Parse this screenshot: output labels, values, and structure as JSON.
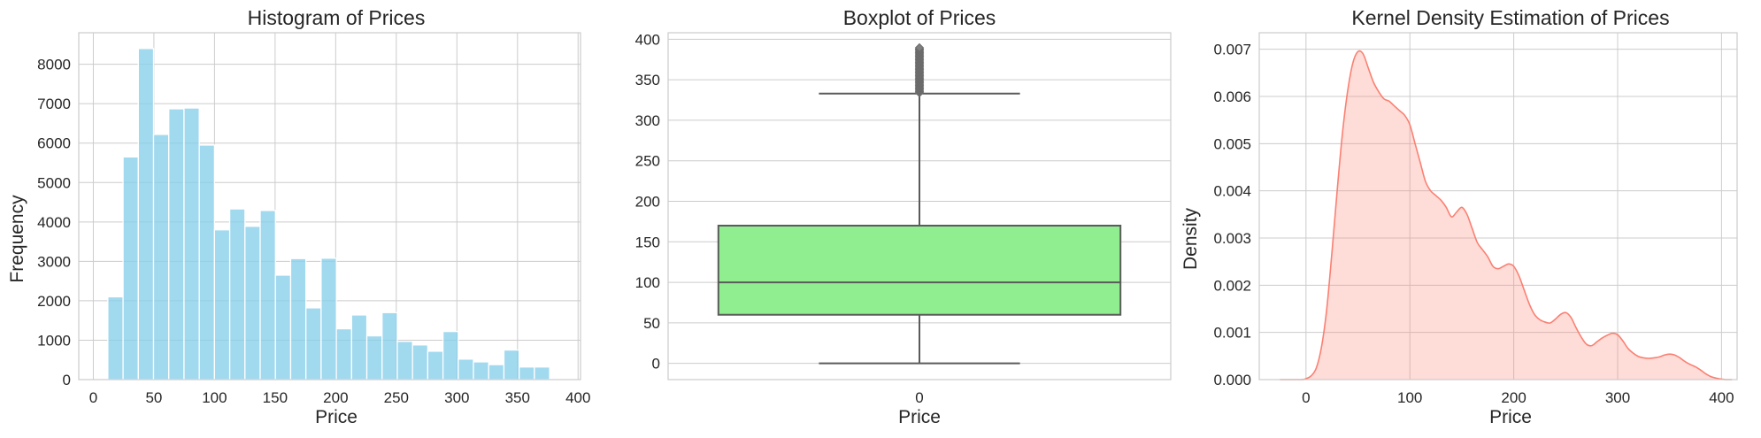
{
  "chart_data": [
    {
      "type": "bar",
      "title": "Histogram of Prices",
      "xlabel": "Price",
      "ylabel": "Frequency",
      "xlim": [
        -12,
        402
      ],
      "ylim": [
        0,
        8800
      ],
      "xticks": [
        0,
        50,
        100,
        150,
        200,
        250,
        300,
        350,
        400
      ],
      "yticks": [
        0,
        1000,
        2000,
        3000,
        4000,
        5000,
        6000,
        7000,
        8000
      ],
      "bin_width": 12.57,
      "bin_starts": [
        12,
        24.57,
        37.14,
        49.71,
        62.28,
        74.85,
        87.42,
        99.99,
        112.56,
        125.13,
        137.7,
        150.27,
        162.84,
        175.41,
        187.98,
        200.55,
        213.12,
        225.69,
        238.26,
        250.83,
        263.4,
        275.97,
        288.54,
        301.11,
        313.68,
        326.25,
        338.82,
        351.39,
        363.96,
        376.53
      ],
      "values": [
        2100,
        5650,
        8400,
        6220,
        6870,
        6890,
        5950,
        3800,
        4330,
        3890,
        4290,
        2650,
        3070,
        1820,
        3080,
        1290,
        1640,
        1110,
        1700,
        970,
        880,
        720,
        1220,
        520,
        450,
        380,
        750,
        320,
        320,
        0
      ],
      "grid": true,
      "color": "#87ceeb"
    },
    {
      "type": "box",
      "title": "Boxplot of Prices",
      "xlabel": "Price",
      "ylabel": "",
      "categories": [
        "0"
      ],
      "ylim": [
        -20,
        408
      ],
      "yticks": [
        0,
        50,
        100,
        150,
        200,
        250,
        300,
        350,
        400
      ],
      "whisker_low": 0,
      "q1": 60,
      "median": 100,
      "q3": 170,
      "whisker_high": 333,
      "outliers_range": [
        334,
        390
      ],
      "grid": true,
      "color": "#90ee90"
    },
    {
      "type": "area",
      "title": "Kernel Density Estimation of Prices",
      "xlabel": "Price",
      "ylabel": "Density",
      "xlim": [
        -45,
        415
      ],
      "ylim": [
        0,
        0.00735
      ],
      "xticks": [
        0,
        100,
        200,
        300,
        400
      ],
      "yticks": [
        0,
        0.001,
        0.002,
        0.003,
        0.004,
        0.005,
        0.006,
        0.007
      ],
      "ytick_labels": [
        "0.000",
        "0.001",
        "0.002",
        "0.003",
        "0.004",
        "0.005",
        "0.006",
        "0.007"
      ],
      "x": [
        -25,
        -5,
        0,
        5,
        10,
        15,
        20,
        25,
        30,
        35,
        40,
        45,
        50,
        55,
        60,
        65,
        70,
        75,
        80,
        85,
        90,
        95,
        100,
        105,
        110,
        115,
        120,
        125,
        130,
        135,
        140,
        145,
        150,
        155,
        160,
        165,
        170,
        175,
        180,
        185,
        190,
        195,
        200,
        205,
        210,
        215,
        220,
        225,
        230,
        235,
        240,
        245,
        250,
        255,
        260,
        265,
        270,
        275,
        280,
        285,
        290,
        295,
        300,
        305,
        310,
        315,
        320,
        325,
        330,
        335,
        340,
        345,
        350,
        355,
        360,
        365,
        370,
        375,
        380,
        385,
        390,
        395,
        400,
        405,
        410
      ],
      "y": [
        0,
        0,
        2e-05,
        8e-05,
        0.00025,
        0.0007,
        0.0015,
        0.0027,
        0.004,
        0.0052,
        0.0061,
        0.0067,
        0.00695,
        0.0069,
        0.0066,
        0.0063,
        0.0061,
        0.00595,
        0.0059,
        0.0058,
        0.0057,
        0.0056,
        0.0054,
        0.005,
        0.0046,
        0.0042,
        0.004,
        0.0039,
        0.0038,
        0.00365,
        0.00345,
        0.00355,
        0.00365,
        0.0035,
        0.0032,
        0.0029,
        0.00275,
        0.0026,
        0.0024,
        0.00235,
        0.0024,
        0.00245,
        0.0024,
        0.0022,
        0.0019,
        0.0016,
        0.00138,
        0.00127,
        0.00122,
        0.0012,
        0.00128,
        0.00138,
        0.00142,
        0.00132,
        0.0011,
        0.0009,
        0.00075,
        0.00072,
        0.0008,
        0.00088,
        0.00094,
        0.00098,
        0.00095,
        0.00082,
        0.00066,
        0.00056,
        0.00049,
        0.00046,
        0.00045,
        0.00046,
        0.00048,
        0.00052,
        0.00054,
        0.00052,
        0.00046,
        0.00038,
        0.00032,
        0.00027,
        0.0002,
        0.00012,
        6e-05,
        3e-05,
        1e-05,
        0,
        0
      ],
      "grid": true,
      "color": "#fa8072"
    }
  ]
}
